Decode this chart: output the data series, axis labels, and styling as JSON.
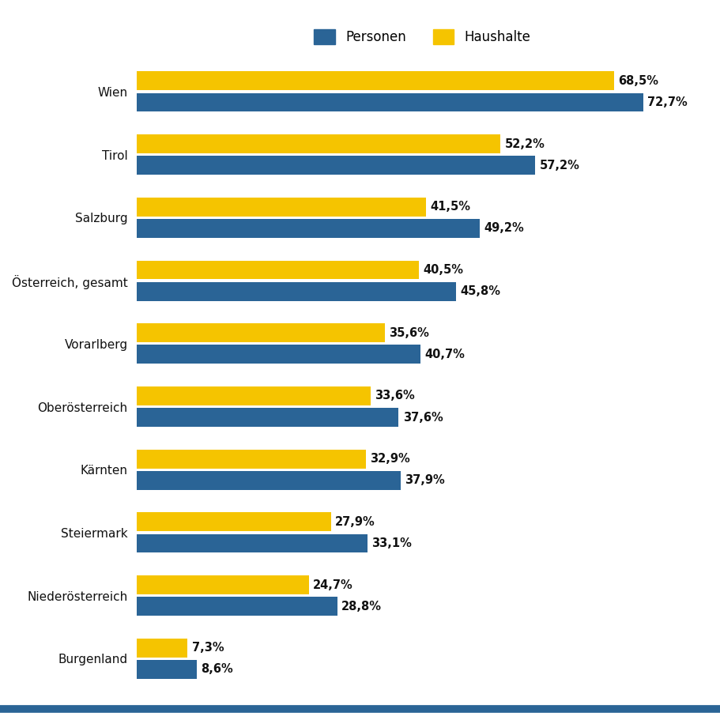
{
  "categories": [
    "Burgenland",
    "Niederösterreich",
    "Steiermark",
    "Kärnten",
    "Oberösterreich",
    "Vorarlberg",
    "Österreich, gesamt",
    "Salzburg",
    "Tirol",
    "Wien"
  ],
  "personen": [
    72.7,
    57.2,
    49.2,
    45.8,
    40.7,
    37.6,
    37.9,
    33.1,
    28.8,
    8.6
  ],
  "haushalte": [
    68.5,
    52.2,
    41.5,
    40.5,
    35.6,
    33.6,
    32.9,
    27.9,
    24.7,
    7.3
  ],
  "personen_labels": [
    "72,7%",
    "57,2%",
    "49,2%",
    "45,8%",
    "40,7%",
    "37,6%",
    "37,9%",
    "33,1%",
    "28,8%",
    "8,6%"
  ],
  "haushalte_labels": [
    "68,5%",
    "52,2%",
    "41,5%",
    "40,5%",
    "35,6%",
    "33,6%",
    "32,9%",
    "27,9%",
    "24,7%",
    "7,3%"
  ],
  "color_personen": "#2A6496",
  "color_haushalte": "#F5C400",
  "background_color": "#ffffff",
  "xlim_max": 82,
  "bar_height": 0.3,
  "legend_personen": "Personen",
  "legend_haushalte": "Haushalte",
  "label_fontsize": 10.5,
  "tick_fontsize": 11,
  "legend_fontsize": 12,
  "bottom_line_color": "#2A6496"
}
